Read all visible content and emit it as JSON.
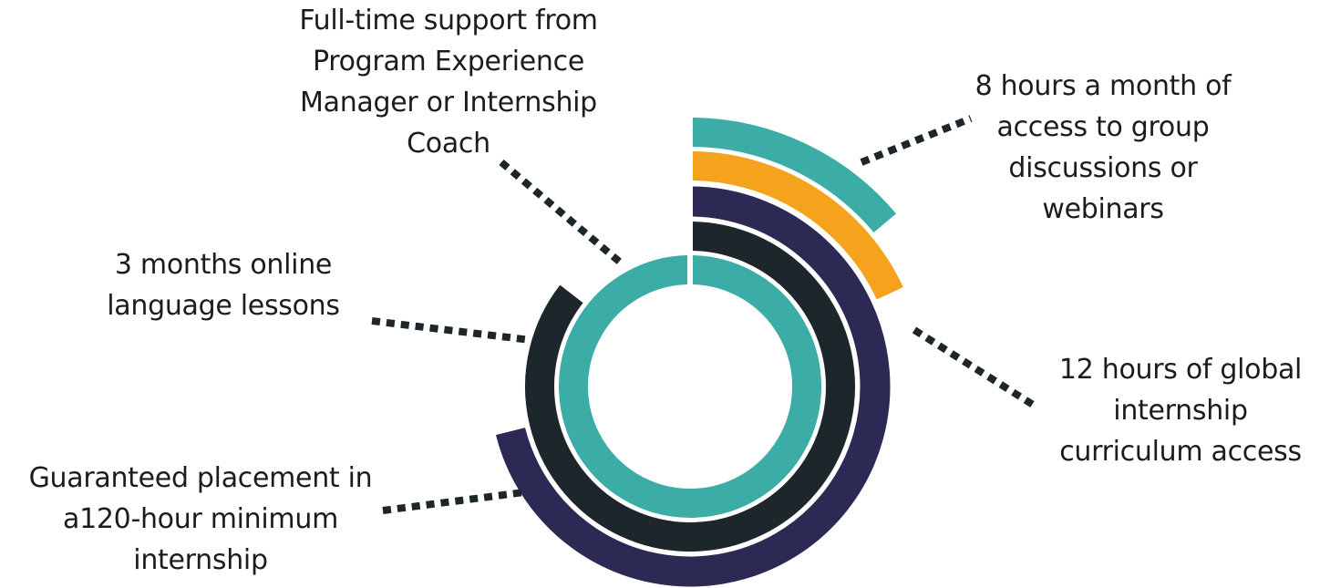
{
  "colors": {
    "teal": "#3bada6",
    "orange": "#f5a31c",
    "navy": "#2c2954",
    "dark": "#1c262b",
    "text": "#1c1c1c",
    "connector": "#1c262b"
  },
  "rings": [
    {
      "name": "online-language-lessons-ring",
      "color_key": "teal",
      "start_deg": 0,
      "end_deg": 359
    },
    {
      "name": "language-lessons-ring",
      "color_key": "dark",
      "start_deg": 0,
      "end_deg": 308
    },
    {
      "name": "guaranteed-placement-ring",
      "color_key": "navy",
      "start_deg": 0,
      "end_deg": 256
    },
    {
      "name": "curriculum-access-ring",
      "color_key": "orange",
      "start_deg": 0,
      "end_deg": 65
    },
    {
      "name": "group-discussions-ring",
      "color_key": "teal",
      "start_deg": 0,
      "end_deg": 50
    }
  ],
  "labels": {
    "top": [
      "Full-time support from",
      "Program Experience",
      "Manager or Internship",
      "Coach"
    ],
    "right_top": [
      "8 hours a month of",
      "access to group",
      "discussions or",
      "webinars"
    ],
    "right_mid": [
      "12 hours of global",
      "internship",
      "curriculum access"
    ],
    "left_mid": [
      "3 months online",
      "language lessons"
    ],
    "left_bottom": [
      "Guaranteed placement in",
      "a120-hour minimum",
      "internship"
    ]
  }
}
